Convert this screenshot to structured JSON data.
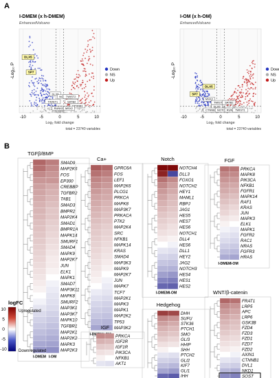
{
  "figure": {
    "panel_a": "A",
    "panel_b": "B"
  },
  "chart_data": [
    {
      "type": "scatter",
      "title": "I-DMEM (x h-DMEM)",
      "subtitle": "EnhancedVolcano",
      "xlabel": "Log₂ fold change",
      "ylabel": "-Log₁₀ P",
      "xticks": [
        -10,
        -5,
        0,
        5,
        10
      ],
      "xlim": [
        -11,
        11
      ],
      "ylim": [
        0,
        100
      ],
      "legend": [
        "Down",
        "NS",
        "Up"
      ],
      "legend_colors": [
        "#1f2fbf",
        "#aaaaaa",
        "#c01818"
      ],
      "caption": "total = 23740 variables",
      "labels": [
        {
          "text": "DLX5",
          "x": -8.6,
          "y": 65,
          "tag": "yellow"
        },
        {
          "text": "SP7",
          "x": -7.8,
          "y": 47,
          "tag": "yellow"
        },
        {
          "text": "DLX5",
          "x": -1.2,
          "y": 21
        },
        {
          "text": "NOTCH4",
          "x": 1.4,
          "y": 18
        },
        {
          "text": "TWIST2",
          "x": 3.0,
          "y": 18
        },
        {
          "text": "TWIST1",
          "x": -1.9,
          "y": 12
        },
        {
          "text": "SATB2",
          "x": 3.2,
          "y": 12
        },
        {
          "text": "CTNNB1",
          "x": 4.8,
          "y": 7
        },
        {
          "text": "RUNX2",
          "x": -0.3,
          "y": 4
        },
        {
          "text": "MSX2",
          "x": 2.5,
          "y": 4
        }
      ]
    },
    {
      "type": "scatter",
      "title": "I-OM (x h-OM)",
      "subtitle": "EnhancedVolcano",
      "xlabel": "Log₂ fold change",
      "ylabel": "-Log₁₀ P",
      "xticks": [
        -10,
        -5,
        0,
        5,
        10
      ],
      "xlim": [
        -11,
        11
      ],
      "ylim": [
        0,
        100
      ],
      "legend": [
        "Down",
        "NS",
        "Up"
      ],
      "legend_colors": [
        "#1f2fbf",
        "#aaaaaa",
        "#c01818"
      ],
      "caption": "total = 23740 variables",
      "labels": [
        {
          "text": "DLX5",
          "x": -3.2,
          "y": 30,
          "tag": "yellow"
        },
        {
          "text": "SP7",
          "x": -7.0,
          "y": 21,
          "tag": "yellow"
        },
        {
          "text": "MSX2",
          "x": -3.1,
          "y": 15
        },
        {
          "text": "TWIST2",
          "x": -0.5,
          "y": 11
        },
        {
          "text": "SATB2",
          "x": 2.3,
          "y": 11
        },
        {
          "text": "DLX5",
          "x": -1.0,
          "y": 6
        },
        {
          "text": "CTNNB1",
          "x": -2.6,
          "y": 2
        },
        {
          "text": "NOTCH4",
          "x": 0.6,
          "y": 2
        },
        {
          "text": "RUNX2",
          "x": 2.9,
          "y": 2
        },
        {
          "text": "TWIST1",
          "x": 5.3,
          "y": 2
        }
      ]
    },
    {
      "type": "heatmap",
      "title": "TGFβ/BMP",
      "columns": [
        "I-DMEM",
        "I-OM"
      ],
      "rows": [
        "SMAD9",
        "MAP2K6",
        "FOS",
        "EP300",
        "CREBBP",
        "TGFBR2",
        "TAB1",
        "SMAD3",
        "BMPR2",
        "MAP2K4",
        "SMAD1",
        "BMPR1A",
        "MAPK14",
        "SMURF1",
        "SMAD4",
        "MAPK9",
        "MAP2K7",
        "JUN",
        "ELK1",
        "MAPK1",
        "SMAD7",
        "MAP3K11",
        "MAPK8",
        "SMURF2",
        "MAP3K1",
        "MAP3K7",
        "MAPK10",
        "TGFBR1",
        "MAP2K1",
        "MAP2K2",
        "MAPK3",
        "MAP2K3"
      ],
      "values": [
        [
          4.5,
          3.5
        ],
        [
          4.0,
          3.0
        ],
        [
          3.0,
          2.5
        ],
        [
          2.5,
          2.5
        ],
        [
          2.2,
          1.8
        ],
        [
          2.0,
          1.6
        ],
        [
          1.8,
          1.4
        ],
        [
          1.6,
          1.2
        ],
        [
          1.5,
          1.0
        ],
        [
          1.4,
          1.0
        ],
        [
          1.2,
          0.8
        ],
        [
          1.1,
          0.7
        ],
        [
          1.0,
          0.6
        ],
        [
          0.9,
          0.5
        ],
        [
          0.8,
          0.4
        ],
        [
          0.7,
          0.3
        ],
        [
          0.6,
          0.2
        ],
        [
          0.5,
          0.2
        ],
        [
          0.4,
          0.1
        ],
        [
          0.3,
          0.0
        ],
        [
          0.2,
          -0.1
        ],
        [
          0.1,
          -0.2
        ],
        [
          0.0,
          -0.3
        ],
        [
          -0.1,
          -0.4
        ],
        [
          -0.3,
          -0.5
        ],
        [
          -0.5,
          -0.7
        ],
        [
          -0.7,
          -0.9
        ],
        [
          -0.9,
          -1.1
        ],
        [
          -1.2,
          -1.4
        ],
        [
          -1.5,
          -1.7
        ],
        [
          -1.9,
          -2.1
        ],
        [
          -2.5,
          -2.8
        ]
      ]
    },
    {
      "type": "heatmap",
      "title": "Ca+",
      "columns": [
        "I-DMEM",
        "I-OM"
      ],
      "rows": [
        "GPRC6A",
        "FOS",
        "LEF1",
        "MAP2K6",
        "PLCG1",
        "PRKCA",
        "MAPK8",
        "MAP3K7",
        "PRKACA",
        "PTK2",
        "MAP2K4",
        "SRC",
        "NFKB1",
        "MAPK14",
        "KRAS",
        "SMAD4",
        "MAP3K3",
        "MAPK9",
        "MAP2K7",
        "JUN",
        "MAPK7",
        "TCF7",
        "MAP2K1",
        "MAPK3",
        "MAPK1",
        "MAP2K2",
        "TP53",
        "MAP3K2"
      ],
      "values": [
        [
          5.0,
          4.5
        ],
        [
          4.0,
          3.5
        ],
        [
          3.2,
          2.8
        ],
        [
          2.8,
          2.4
        ],
        [
          2.4,
          2.0
        ],
        [
          2.0,
          1.8
        ],
        [
          1.8,
          1.5
        ],
        [
          1.6,
          1.3
        ],
        [
          1.4,
          1.1
        ],
        [
          1.2,
          1.0
        ],
        [
          1.0,
          0.8
        ],
        [
          0.9,
          0.7
        ],
        [
          0.8,
          0.6
        ],
        [
          0.7,
          0.5
        ],
        [
          0.6,
          0.4
        ],
        [
          0.5,
          0.3
        ],
        [
          0.4,
          0.2
        ],
        [
          0.3,
          0.1
        ],
        [
          0.2,
          0.0
        ],
        [
          0.1,
          -0.1
        ],
        [
          0.0,
          -0.2
        ],
        [
          -0.2,
          -0.3
        ],
        [
          -0.4,
          -0.5
        ],
        [
          -0.6,
          -0.7
        ],
        [
          -0.8,
          -0.9
        ],
        [
          -1.0,
          -1.1
        ],
        [
          -1.4,
          -1.5
        ],
        [
          -2.0,
          -2.2
        ]
      ]
    },
    {
      "type": "heatmap",
      "title": "Notch",
      "columns": [
        "I-DMEM",
        "I-OM"
      ],
      "rows": [
        "NOTCH4",
        "DLL3",
        "FOXO1",
        "NOTCH2",
        "HEY1",
        "MAML1",
        "RBPJ",
        "JAG1",
        "HES5",
        "HES7",
        "HES6",
        "NOTCH1",
        "DLL4",
        "HES6",
        "DLL1",
        "HEY2",
        "JAG2",
        "NOTCH3",
        "HES4",
        "HES1",
        "HES2"
      ],
      "values": [
        [
          9.5,
          9.5
        ],
        [
          8.0,
          -6.0
        ],
        [
          4.0,
          3.0
        ],
        [
          3.0,
          2.2
        ],
        [
          2.4,
          1.8
        ],
        [
          2.0,
          1.4
        ],
        [
          1.6,
          1.2
        ],
        [
          1.3,
          1.0
        ],
        [
          1.0,
          0.8
        ],
        [
          0.8,
          0.6
        ],
        [
          0.6,
          0.4
        ],
        [
          0.4,
          0.3
        ],
        [
          0.2,
          0.1
        ],
        [
          0.0,
          -0.1
        ],
        [
          -0.3,
          -0.4
        ],
        [
          -0.6,
          -0.7
        ],
        [
          -1.0,
          -1.1
        ],
        [
          -1.5,
          -1.6
        ],
        [
          -2.2,
          -2.5
        ],
        [
          -3.2,
          -3.5
        ],
        [
          -4.5,
          -4.8
        ]
      ]
    },
    {
      "type": "heatmap",
      "title": "FGF",
      "columns": [
        "I-DMEM",
        "I-OM"
      ],
      "rows": [
        "PRKCA",
        "MAPK8",
        "PIK3CA",
        "NFKB1",
        "FGFR1",
        "MAPK14",
        "RAF1",
        "KRAS",
        "JUN",
        "MAPK3",
        "ELK1",
        "MAPK1",
        "FGFR2",
        "RAC1",
        "NRAS",
        "FGFR3",
        "HRAS"
      ],
      "values": [
        [
          4.0,
          3.8
        ],
        [
          3.2,
          3.0
        ],
        [
          2.6,
          2.4
        ],
        [
          2.1,
          1.9
        ],
        [
          1.8,
          1.6
        ],
        [
          1.4,
          1.2
        ],
        [
          1.1,
          0.9
        ],
        [
          0.8,
          0.6
        ],
        [
          0.6,
          0.4
        ],
        [
          0.3,
          0.2
        ],
        [
          0.1,
          0.0
        ],
        [
          -0.1,
          -0.2
        ],
        [
          -0.3,
          -0.4
        ],
        [
          -0.5,
          -0.6
        ],
        [
          -0.8,
          -0.9
        ],
        [
          -1.2,
          -1.3
        ],
        [
          -1.8,
          -2.0
        ]
      ]
    },
    {
      "type": "heatmap",
      "title": "IGF",
      "columns": [],
      "rows": [
        "PRKCA",
        "IGF2R",
        "IGF1R",
        "PIK3CA",
        "NFKB1",
        "AKT1"
      ],
      "values": [
        [
          3.0,
          2.8
        ],
        [
          1.6,
          1.4
        ],
        [
          0.9,
          0.8
        ],
        [
          0.4,
          0.3
        ],
        [
          0.1,
          0.0
        ],
        [
          -0.3,
          -0.4
        ]
      ]
    },
    {
      "type": "heatmap",
      "title": "Hedgehog",
      "columns": [
        "I-DMEM",
        "I-OM"
      ],
      "rows": [
        "DHH",
        "SUFU",
        "STK36",
        "PTCH1",
        "SMO",
        "GLI3",
        "HHIP",
        "SHH",
        "PTCH2",
        "GLI2",
        "KIF7",
        "GLI1",
        "IHH"
      ],
      "values": [
        [
          6.5,
          6.0
        ],
        [
          3.0,
          2.6
        ],
        [
          2.2,
          1.8
        ],
        [
          1.6,
          1.3
        ],
        [
          1.2,
          1.0
        ],
        [
          0.8,
          0.6
        ],
        [
          0.4,
          0.3
        ],
        [
          0.1,
          0.0
        ],
        [
          -0.3,
          -0.4
        ],
        [
          -0.7,
          -0.8
        ],
        [
          -1.2,
          -1.4
        ],
        [
          -2.0,
          -2.4
        ],
        [
          -4.5,
          -5.0
        ]
      ]
    },
    {
      "type": "heatmap",
      "title": "WNT/β-catenin",
      "columns": [
        "I-DMEM",
        "I-OM"
      ],
      "rows": [
        "FRAT1",
        "LRP5",
        "APC",
        "LRP6",
        "GSK3B",
        "FZD4",
        "FZD3",
        "FZD1",
        "FZD7",
        "FZD2",
        "AXIN1",
        "CTNNB1",
        "DVL1",
        "NKD1",
        "SOST"
      ],
      "values": [
        [
          4.5,
          4.0
        ],
        [
          3.0,
          2.6
        ],
        [
          2.4,
          2.0
        ],
        [
          1.9,
          1.6
        ],
        [
          1.5,
          1.2
        ],
        [
          1.2,
          1.0
        ],
        [
          0.9,
          0.7
        ],
        [
          0.6,
          0.5
        ],
        [
          0.4,
          0.3
        ],
        [
          0.2,
          0.1
        ],
        [
          0.0,
          -0.1
        ],
        [
          -0.3,
          -0.4
        ],
        [
          -0.7,
          -0.8
        ],
        [
          -1.4,
          -1.6
        ],
        [
          -3.0,
          -3.4
        ]
      ]
    }
  ],
  "color_key": {
    "title": "logFC",
    "ticks": [
      "10",
      "5",
      "0",
      "-5",
      "-10"
    ],
    "upregulated": "Upregulated",
    "downregulated": "Downregulated",
    "high_color": "#7a0000",
    "mid_color": "#ffffff",
    "low_color": "#00007a"
  }
}
